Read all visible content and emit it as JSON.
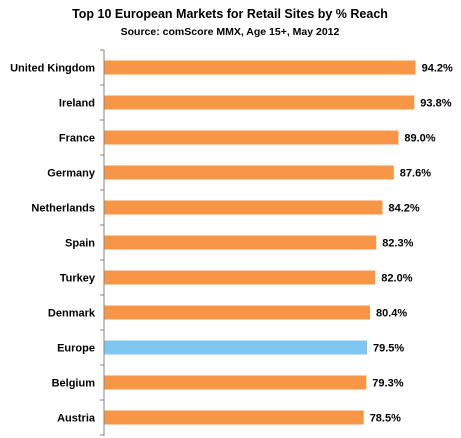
{
  "chart_data": {
    "type": "bar",
    "orientation": "horizontal",
    "title": "Top 10 European Markets for Retail Sites by % Reach",
    "subtitle": "Source: comScore MMX, Age 15+, May 2012",
    "xlabel": "",
    "ylabel": "",
    "xlim": [
      0,
      100
    ],
    "grid": false,
    "legend": "none",
    "categories": [
      "United Kingdom",
      "Ireland",
      "France",
      "Germany",
      "Netherlands",
      "Spain",
      "Turkey",
      "Denmark",
      "Europe",
      "Belgium",
      "Austria"
    ],
    "values": [
      94.2,
      93.8,
      89.0,
      87.6,
      84.2,
      82.3,
      82.0,
      80.4,
      79.5,
      79.3,
      78.5
    ],
    "value_labels": [
      "94.2%",
      "93.8%",
      "89.0%",
      "87.6%",
      "84.2%",
      "82.3%",
      "82.0%",
      "80.4%",
      "79.5%",
      "79.3%",
      "78.5%"
    ],
    "highlight_category": "Europe"
  },
  "colors": {
    "bar": "#F79646",
    "highlight_bar": "#7FC6F0",
    "axis": "#868686",
    "text": "#000000"
  }
}
